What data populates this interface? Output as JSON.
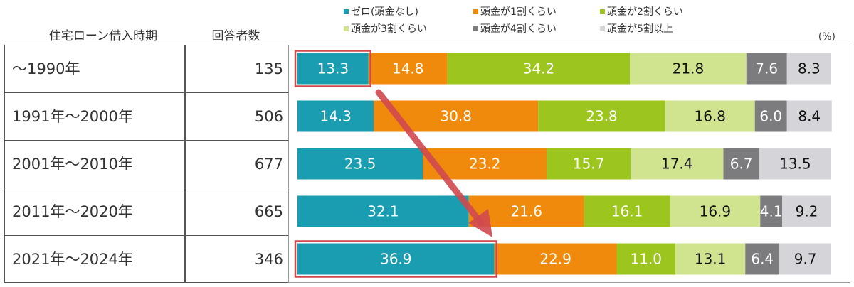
{
  "header": {
    "period_label": "住宅ローン借入時期",
    "respondents_label": "回答者数",
    "unit": "(%)"
  },
  "chart_data": {
    "type": "bar",
    "stacked": true,
    "orientation": "horizontal",
    "categories": [
      "～1990年",
      "1991年～2000年",
      "2001年～2010年",
      "2011年～2020年",
      "2021年～2024年"
    ],
    "respondents": [
      "135",
      "506",
      "677",
      "665",
      "346"
    ],
    "legend_placement": "top",
    "series": [
      {
        "name": "ゼロ(頭金なし)",
        "color": "#1a9db1",
        "label_color": "#ffffff",
        "values": [
          13.3,
          14.3,
          23.5,
          32.1,
          36.9
        ]
      },
      {
        "name": "頭金が1割くらい",
        "color": "#f08a0c",
        "label_color": "#ffffff",
        "values": [
          14.8,
          30.8,
          23.2,
          21.6,
          22.9
        ]
      },
      {
        "name": "頭金が2割くらい",
        "color": "#9cc51e",
        "label_color": "#ffffff",
        "values": [
          34.2,
          23.8,
          15.7,
          16.1,
          11.0
        ]
      },
      {
        "name": "頭金が3割くらい",
        "color": "#d0e38f",
        "label_color": "#111111",
        "values": [
          21.8,
          16.8,
          17.4,
          16.9,
          13.1
        ]
      },
      {
        "name": "頭金が4割くらい",
        "color": "#7c7c7e",
        "label_color": "#ffffff",
        "values": [
          7.6,
          6.0,
          6.7,
          4.1,
          6.4
        ]
      },
      {
        "name": "頭金が5割以上",
        "color": "#d5d5d9",
        "label_color": "#111111",
        "values": [
          8.3,
          8.4,
          13.5,
          9.2,
          9.7
        ]
      }
    ],
    "value_labels": [
      [
        "13.3",
        "14.8",
        "34.2",
        "21.8",
        "7.6",
        "8.3"
      ],
      [
        "14.3",
        "30.8",
        "23.8",
        "16.8",
        "6.0",
        "8.4"
      ],
      [
        "23.5",
        "23.2",
        "15.7",
        "17.4",
        "6.7",
        "13.5"
      ],
      [
        "32.1",
        "21.6",
        "16.1",
        "16.9",
        "4.1",
        "9.2"
      ],
      [
        "36.9",
        "22.9",
        "11.0",
        "13.1",
        "6.4",
        "9.7"
      ]
    ],
    "xlim": [
      0,
      100
    ],
    "grid": false,
    "annotations": {
      "highlight_color": "#d0494f",
      "highlighted": [
        "～1990年 ゼロ(頭金なし)",
        "2021年～2024年 ゼロ(頭金なし)"
      ],
      "arrow": "from ～1990年 ゼロ to 2021年～2024年 ゼロ"
    }
  }
}
